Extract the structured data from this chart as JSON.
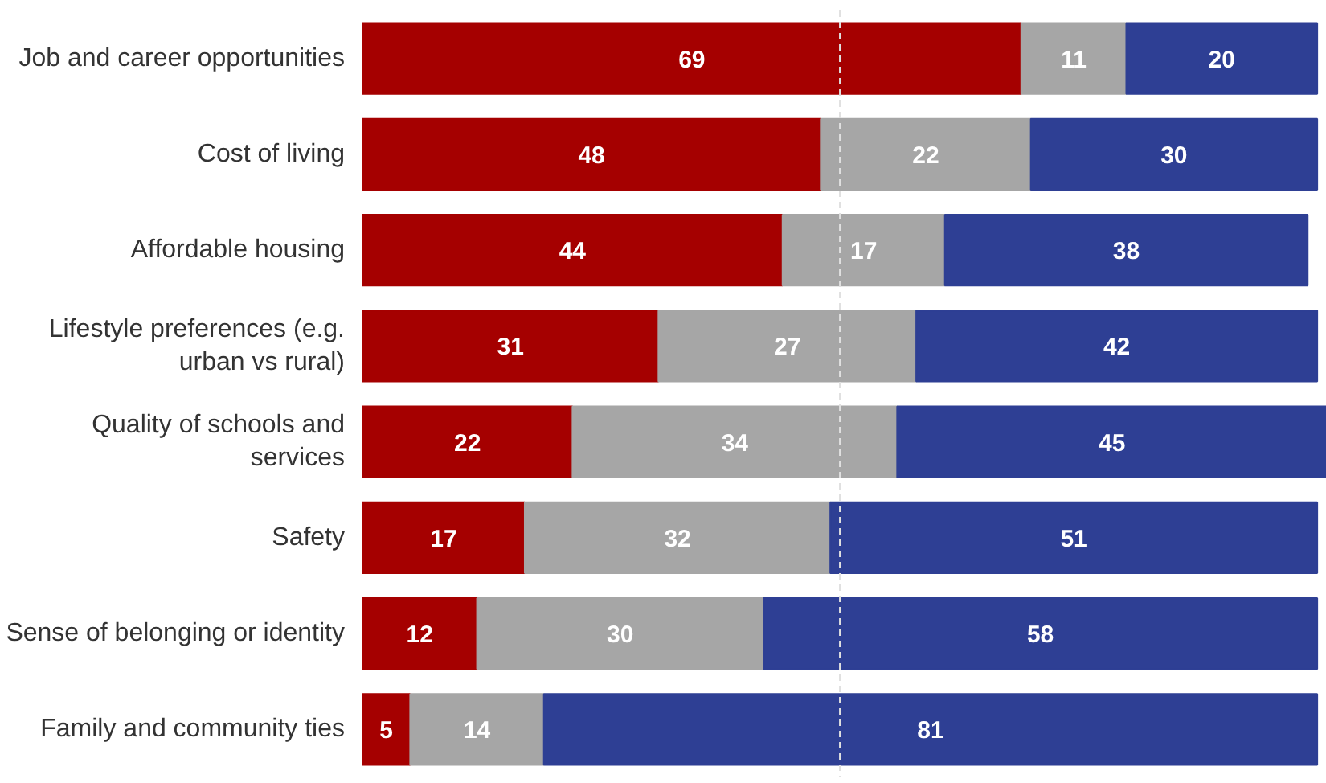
{
  "chart_data": {
    "type": "bar",
    "orientation": "horizontal",
    "stacked": true,
    "categories": [
      "Job and career opportunities",
      "Cost of living",
      "Affordable housing",
      "Lifestyle preferences (e.g. urban vs rural)",
      "Quality of schools and services",
      "Safety",
      "Sense of belonging or identity",
      "Family and community ties"
    ],
    "series": [
      {
        "color": "#a50000",
        "values": [
          69,
          48,
          44,
          31,
          22,
          17,
          12,
          5
        ]
      },
      {
        "color": "#a6a6a6",
        "values": [
          11,
          22,
          17,
          27,
          34,
          32,
          30,
          14
        ]
      },
      {
        "color": "#2e3f94",
        "values": [
          20,
          30,
          38,
          42,
          45,
          51,
          58,
          81
        ]
      }
    ],
    "xlim": [
      0,
      101
    ],
    "tick_labels": "y",
    "grid": false,
    "data_labels": true,
    "ref_lines": [
      {
        "axis": "x",
        "value": 50,
        "color": "#e0e0e0",
        "line_style": "dashed"
      }
    ]
  }
}
